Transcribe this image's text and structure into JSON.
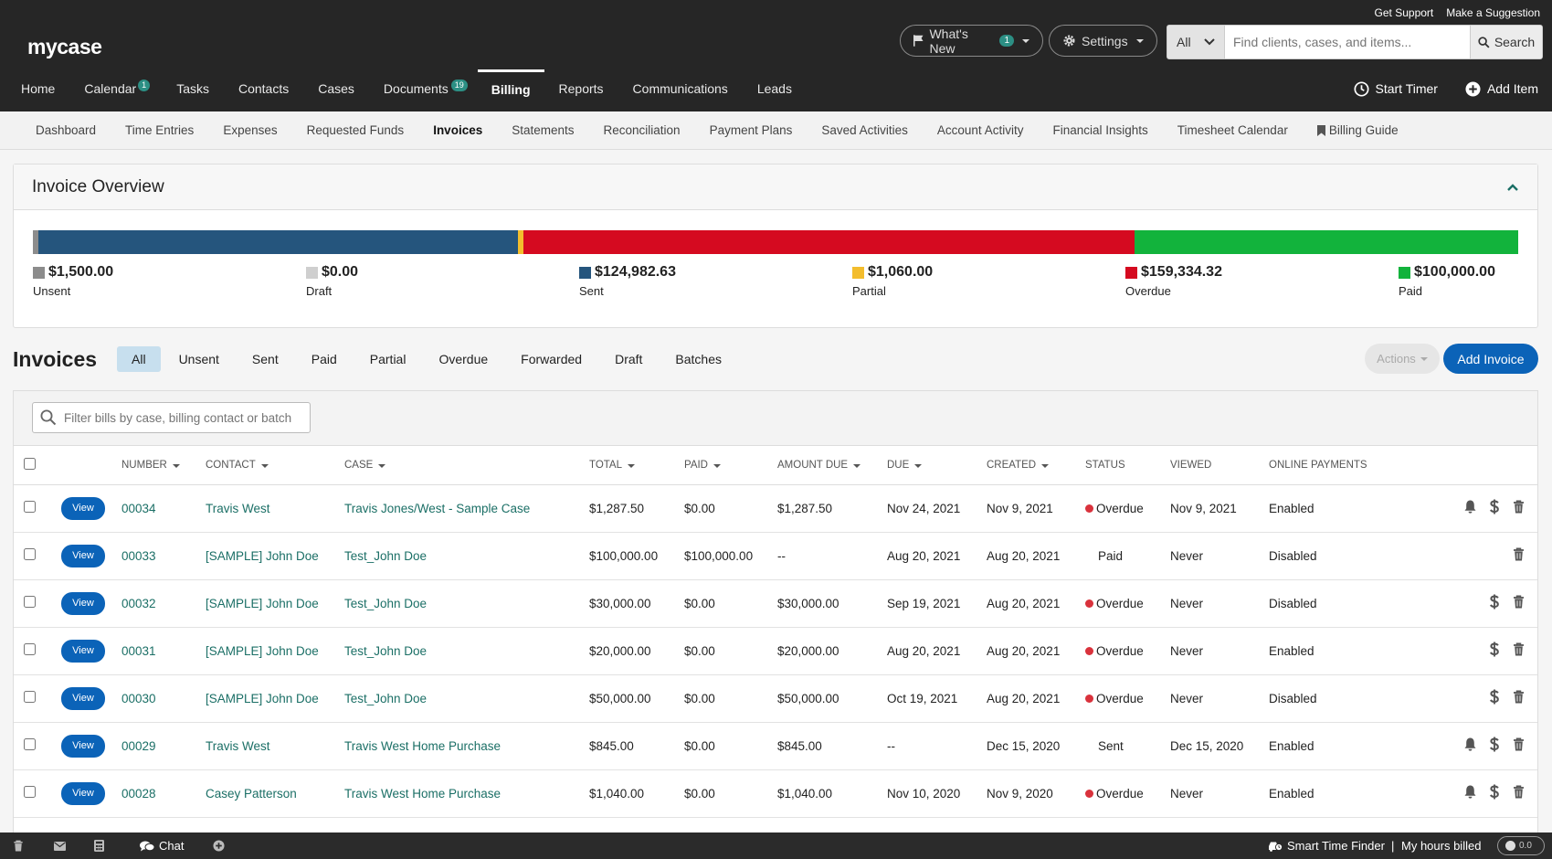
{
  "top_links": {
    "support": "Get Support",
    "suggestion": "Make a Suggestion"
  },
  "logo": "mycase",
  "whats_new": {
    "label": "What's New",
    "count": "1"
  },
  "settings": {
    "label": "Settings"
  },
  "search": {
    "scope": "All",
    "placeholder": "Find clients, cases, and items...",
    "button": "Search"
  },
  "main_nav": [
    {
      "label": "Home",
      "badge": ""
    },
    {
      "label": "Calendar",
      "badge": "1"
    },
    {
      "label": "Tasks",
      "badge": ""
    },
    {
      "label": "Contacts",
      "badge": ""
    },
    {
      "label": "Cases",
      "badge": ""
    },
    {
      "label": "Documents",
      "badge": "19"
    },
    {
      "label": "Billing",
      "badge": ""
    },
    {
      "label": "Reports",
      "badge": ""
    },
    {
      "label": "Communications",
      "badge": ""
    },
    {
      "label": "Leads",
      "badge": ""
    }
  ],
  "right_nav": {
    "timer": "Start Timer",
    "add": "Add Item"
  },
  "sub_nav": [
    "Dashboard",
    "Time Entries",
    "Expenses",
    "Requested Funds",
    "Invoices",
    "Statements",
    "Reconciliation",
    "Payment Plans",
    "Saved Activities",
    "Account Activity",
    "Financial Insights",
    "Timesheet Calendar",
    "Billing Guide"
  ],
  "overview": {
    "title": "Invoice Overview",
    "segments": [
      {
        "label": "Unsent",
        "amount": "$1,500.00",
        "value": 1500,
        "color": "#8c8c8c"
      },
      {
        "label": "Draft",
        "amount": "$0.00",
        "value": 0,
        "color": "#cfcfcf"
      },
      {
        "label": "Sent",
        "amount": "$124,982.63",
        "value": 124982.63,
        "color": "#25557d"
      },
      {
        "label": "Partial",
        "amount": "$1,060.00",
        "value": 1060,
        "color": "#f3bd2d"
      },
      {
        "label": "Overdue",
        "amount": "$159,334.32",
        "value": 159334.32,
        "color": "#d50a20"
      },
      {
        "label": "Paid",
        "amount": "$100,000.00",
        "value": 100000,
        "color": "#12b33c"
      }
    ]
  },
  "invoices": {
    "title": "Invoices",
    "filters": [
      "All",
      "Unsent",
      "Sent",
      "Paid",
      "Partial",
      "Overdue",
      "Forwarded",
      "Draft",
      "Batches"
    ],
    "actions": "Actions",
    "add": "Add Invoice",
    "filter_placeholder": "Filter bills by case, billing contact or batch...",
    "view_label": "View",
    "columns": {
      "number": "NUMBER",
      "contact": "CONTACT",
      "case": "CASE",
      "total": "TOTAL",
      "paid": "PAID",
      "amount_due": "AMOUNT DUE",
      "due": "DUE",
      "created": "CREATED",
      "status": "STATUS",
      "viewed": "VIEWED",
      "online": "ONLINE PAYMENTS"
    },
    "rows": [
      {
        "number": "00034",
        "contact": "Travis West",
        "case": "Travis Jones/West - Sample Case",
        "total": "$1,287.50",
        "paid": "$0.00",
        "amount_due": "$1,287.50",
        "due": "Nov 24, 2021",
        "created": "Nov 9, 2021",
        "status": "Overdue",
        "viewed": "Nov 9, 2021",
        "online": "Enabled",
        "icons": [
          "bell-icon",
          "dollar-icon",
          "trash-icon"
        ]
      },
      {
        "number": "00033",
        "contact": "[SAMPLE] John Doe",
        "case": "Test_John Doe",
        "total": "$100,000.00",
        "paid": "$100,000.00",
        "amount_due": "--",
        "due": "Aug 20, 2021",
        "created": "Aug 20, 2021",
        "status": "Paid",
        "viewed": "Never",
        "online": "Disabled",
        "icons": [
          "trash-icon"
        ]
      },
      {
        "number": "00032",
        "contact": "[SAMPLE] John Doe",
        "case": "Test_John Doe",
        "total": "$30,000.00",
        "paid": "$0.00",
        "amount_due": "$30,000.00",
        "due": "Sep 19, 2021",
        "created": "Aug 20, 2021",
        "status": "Overdue",
        "viewed": "Never",
        "online": "Disabled",
        "icons": [
          "dollar-icon",
          "trash-icon"
        ]
      },
      {
        "number": "00031",
        "contact": "[SAMPLE] John Doe",
        "case": "Test_John Doe",
        "total": "$20,000.00",
        "paid": "$0.00",
        "amount_due": "$20,000.00",
        "due": "Aug 20, 2021",
        "created": "Aug 20, 2021",
        "status": "Overdue",
        "viewed": "Never",
        "online": "Enabled",
        "icons": [
          "dollar-icon",
          "trash-icon"
        ]
      },
      {
        "number": "00030",
        "contact": "[SAMPLE] John Doe",
        "case": "Test_John Doe",
        "total": "$50,000.00",
        "paid": "$0.00",
        "amount_due": "$50,000.00",
        "due": "Oct 19, 2021",
        "created": "Aug 20, 2021",
        "status": "Overdue",
        "viewed": "Never",
        "online": "Disabled",
        "icons": [
          "dollar-icon",
          "trash-icon"
        ]
      },
      {
        "number": "00029",
        "contact": "Travis West",
        "case": "Travis West Home Purchase",
        "total": "$845.00",
        "paid": "$0.00",
        "amount_due": "$845.00",
        "due": "--",
        "created": "Dec 15, 2020",
        "status": "Sent",
        "viewed": "Dec 15, 2020",
        "online": "Enabled",
        "icons": [
          "bell-icon",
          "dollar-icon",
          "trash-icon"
        ]
      },
      {
        "number": "00028",
        "contact": "Casey Patterson",
        "case": "Travis West Home Purchase",
        "total": "$1,040.00",
        "paid": "$0.00",
        "amount_due": "$1,040.00",
        "due": "Nov 10, 2020",
        "created": "Nov 9, 2020",
        "status": "Overdue",
        "viewed": "Never",
        "online": "Enabled",
        "icons": [
          "bell-icon",
          "dollar-icon",
          "trash-icon"
        ]
      }
    ]
  },
  "footer": {
    "chat": "Chat",
    "smart_time": "Smart Time Finder",
    "separator": "|",
    "hours": "My hours billed",
    "toggle": "0.0"
  }
}
